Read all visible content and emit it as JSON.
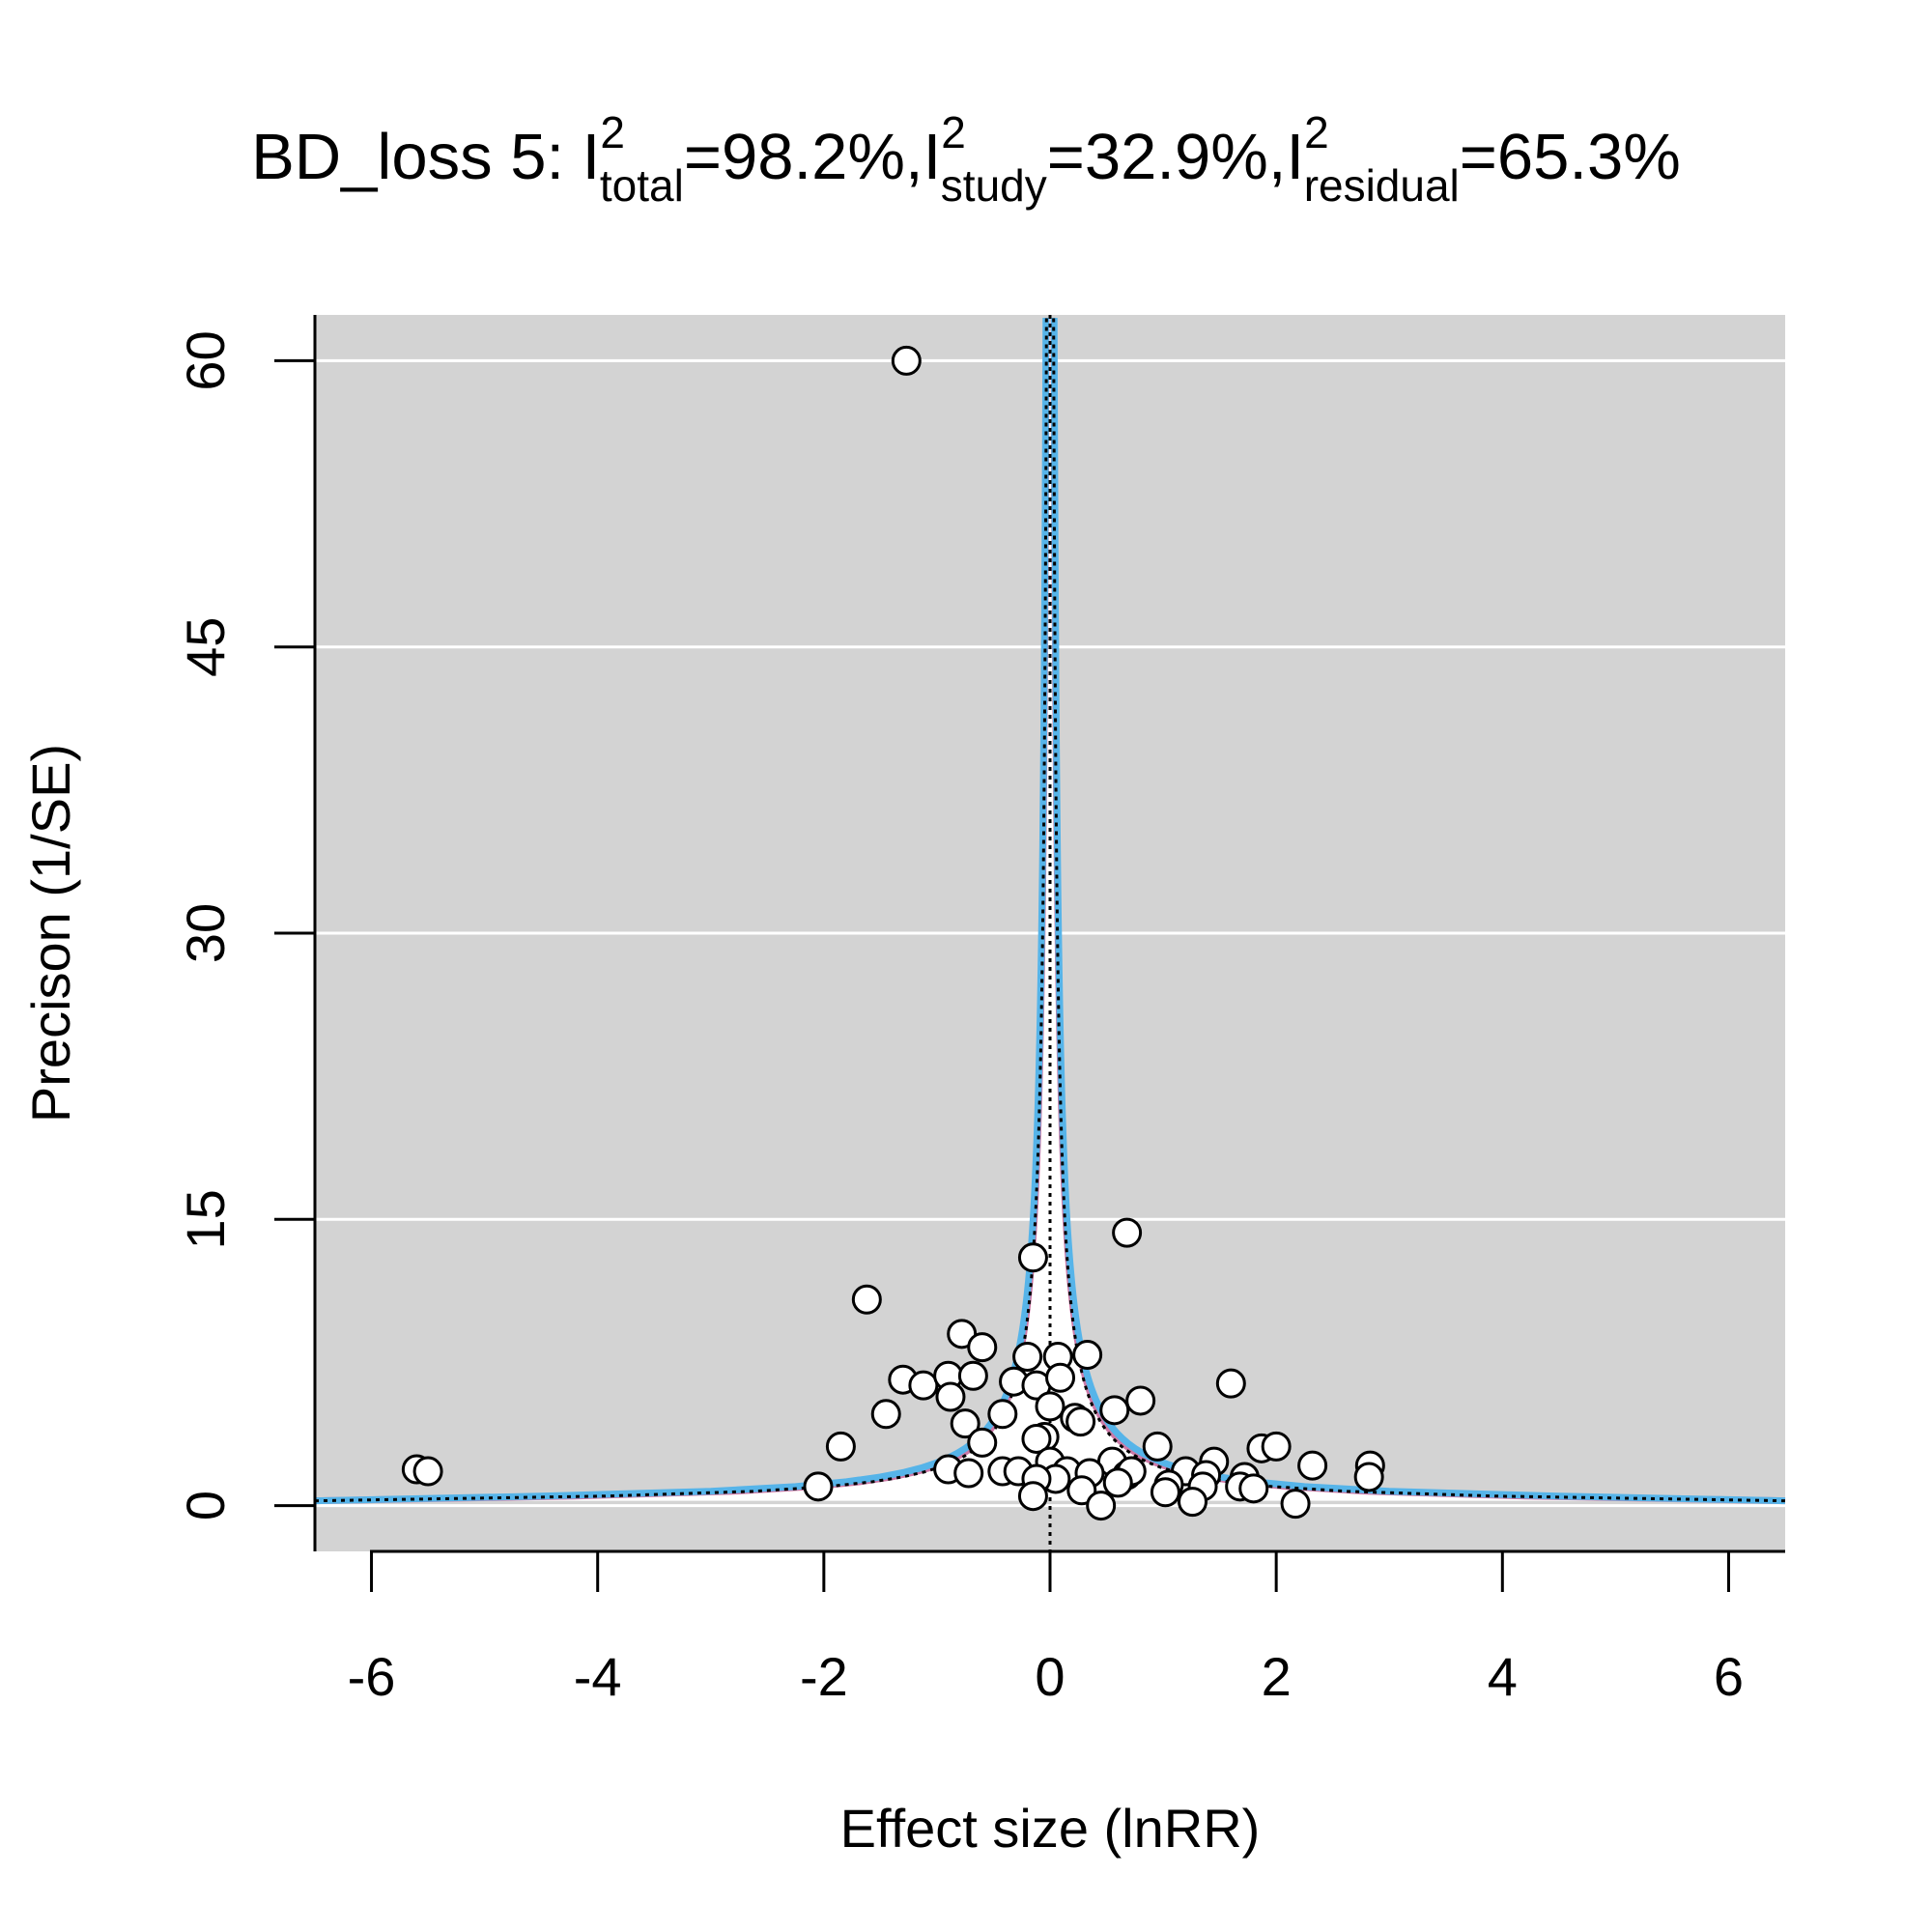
{
  "chart_data": {
    "type": "scatter",
    "title": {
      "prefix": "BD_loss 5: I",
      "parts": [
        {
          "sub": "total",
          "sup": "2",
          "value": "=98.2%,I"
        },
        {
          "sub": "study",
          "sup": "2",
          "value": "=32.9%,I"
        },
        {
          "sub": "residual",
          "sup": "2",
          "value": "=65.3%"
        }
      ]
    },
    "xlabel": "Effect size (lnRR)",
    "ylabel": "Precison (1/SE)",
    "xlim": [
      -6.5,
      6.5
    ],
    "ylim": [
      -2.4,
      62.4
    ],
    "xticks": [
      -6,
      -4,
      -2,
      0,
      2,
      4,
      6
    ],
    "yticks": [
      0,
      15,
      30,
      45,
      60
    ],
    "grid": true,
    "pooled_estimate": 0.0,
    "colors": {
      "panel": "#d3d3d3",
      "funnel_fill": "#ffffff",
      "ci_band_blue": "#56b4e9",
      "ci_band_pink": "#cc79a7",
      "point_fill": "#ffffff",
      "point_stroke": "#000000"
    },
    "points": [
      [
        -1.27,
        60.0
      ],
      [
        0.68,
        14.3
      ],
      [
        -0.15,
        13.0
      ],
      [
        -1.62,
        10.8
      ],
      [
        -0.78,
        9.0
      ],
      [
        -0.6,
        8.3
      ],
      [
        -0.2,
        7.8
      ],
      [
        0.07,
        7.8
      ],
      [
        0.33,
        7.9
      ],
      [
        -1.3,
        6.6
      ],
      [
        -1.12,
        6.3
      ],
      [
        -0.9,
        6.8
      ],
      [
        -0.68,
        6.8
      ],
      [
        -0.32,
        6.5
      ],
      [
        -0.12,
        6.3
      ],
      [
        0.09,
        6.7
      ],
      [
        1.6,
        6.4
      ],
      [
        -0.88,
        5.7
      ],
      [
        0.8,
        5.5
      ],
      [
        0.57,
        5.0
      ],
      [
        0.0,
        5.2
      ],
      [
        -1.45,
        4.8
      ],
      [
        -0.42,
        4.8
      ],
      [
        0.22,
        4.6
      ],
      [
        0.27,
        4.4
      ],
      [
        -0.75,
        4.3
      ],
      [
        -0.05,
        3.6
      ],
      [
        -0.12,
        3.5
      ],
      [
        -0.6,
        3.3
      ],
      [
        -1.85,
        3.1
      ],
      [
        0.95,
        3.1
      ],
      [
        1.87,
        3.0
      ],
      [
        2.0,
        3.1
      ],
      [
        0.55,
        2.3
      ],
      [
        1.45,
        2.3
      ],
      [
        0.0,
        2.3
      ],
      [
        -0.42,
        1.8
      ],
      [
        -0.28,
        1.8
      ],
      [
        -0.9,
        1.9
      ],
      [
        -0.72,
        1.7
      ],
      [
        2.32,
        2.1
      ],
      [
        2.83,
        2.1
      ],
      [
        2.82,
        1.5
      ],
      [
        0.15,
        1.8
      ],
      [
        0.35,
        1.7
      ],
      [
        0.68,
        1.6
      ],
      [
        0.72,
        1.8
      ],
      [
        1.2,
        1.8
      ],
      [
        1.38,
        1.6
      ],
      [
        1.72,
        1.5
      ],
      [
        0.05,
        1.4
      ],
      [
        -0.12,
        1.4
      ],
      [
        0.6,
        1.2
      ],
      [
        1.05,
        1.1
      ],
      [
        1.35,
        1.0
      ],
      [
        1.68,
        1.0
      ],
      [
        1.8,
        0.9
      ],
      [
        0.28,
        0.8
      ],
      [
        1.02,
        0.7
      ],
      [
        -0.15,
        0.5
      ],
      [
        1.26,
        0.2
      ],
      [
        2.17,
        0.1
      ],
      [
        0.45,
        0.0
      ],
      [
        -2.05,
        1.0
      ],
      [
        -5.6,
        1.9
      ],
      [
        -5.5,
        1.8
      ]
    ]
  }
}
